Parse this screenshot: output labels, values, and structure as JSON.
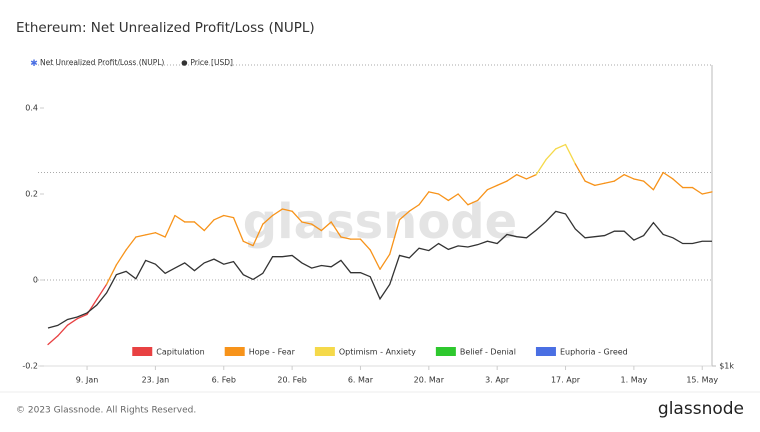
{
  "chart_data": {
    "type": "line",
    "title": "Ethereum: Net Unrealized Profit/Loss (NUPL)",
    "watermark": "glassnode",
    "x": [
      "1. Jan",
      "3. Jan",
      "5. Jan",
      "7. Jan",
      "9. Jan",
      "11. Jan",
      "13. Jan",
      "15. Jan",
      "17. Jan",
      "19. Jan",
      "21. Jan",
      "23. Jan",
      "25. Jan",
      "27. Jan",
      "29. Jan",
      "31. Jan",
      "2. Feb",
      "4. Feb",
      "6. Feb",
      "8. Feb",
      "10. Feb",
      "12. Feb",
      "14. Feb",
      "16. Feb",
      "18. Feb",
      "20. Feb",
      "22. Feb",
      "24. Feb",
      "26. Feb",
      "28. Feb",
      "2. Mar",
      "4. Mar",
      "6. Mar",
      "8. Mar",
      "10. Mar",
      "12. Mar",
      "14. Mar",
      "16. Mar",
      "18. Mar",
      "20. Mar",
      "22. Mar",
      "24. Mar",
      "26. Mar",
      "28. Mar",
      "30. Mar",
      "1. Apr",
      "3. Apr",
      "5. Apr",
      "7. Apr",
      "9. Apr",
      "11. Apr",
      "13. Apr",
      "15. Apr",
      "17. Apr",
      "19. Apr",
      "21. Apr",
      "23. Apr",
      "25. Apr",
      "27. Apr",
      "29. Apr",
      "1. May",
      "3. May",
      "5. May",
      "7. May",
      "9. May",
      "11. May",
      "13. May",
      "15. May",
      "17. May"
    ],
    "series": [
      {
        "name": "Net Unrealized Profit/Loss (NUPL)",
        "color": "#4a6fe3",
        "values": [
          -0.15,
          -0.13,
          -0.105,
          -0.09,
          -0.08,
          -0.045,
          -0.01,
          0.035,
          0.07,
          0.1,
          0.105,
          0.11,
          0.1,
          0.15,
          0.135,
          0.135,
          0.115,
          0.14,
          0.15,
          0.145,
          0.09,
          0.08,
          0.13,
          0.15,
          0.165,
          0.16,
          0.135,
          0.13,
          0.115,
          0.135,
          0.1,
          0.095,
          0.095,
          0.07,
          0.025,
          0.06,
          0.14,
          0.16,
          0.175,
          0.205,
          0.2,
          0.185,
          0.2,
          0.175,
          0.185,
          0.21,
          0.22,
          0.23,
          0.245,
          0.235,
          0.245,
          0.28,
          0.305,
          0.315,
          0.27,
          0.23,
          0.22,
          0.225,
          0.23,
          0.245,
          0.235,
          0.23,
          0.21,
          0.25,
          0.235,
          0.215,
          0.215,
          0.2,
          0.205
        ]
      },
      {
        "name": "Price [USD]",
        "color": "#333333",
        "axis": "y2",
        "values": [
          1200,
          1215,
          1250,
          1265,
          1290,
          1340,
          1420,
          1550,
          1575,
          1520,
          1660,
          1630,
          1560,
          1600,
          1640,
          1580,
          1640,
          1670,
          1630,
          1650,
          1550,
          1515,
          1560,
          1690,
          1690,
          1700,
          1640,
          1600,
          1620,
          1610,
          1660,
          1565,
          1565,
          1535,
          1380,
          1480,
          1700,
          1680,
          1760,
          1740,
          1800,
          1750,
          1780,
          1770,
          1790,
          1820,
          1800,
          1880,
          1860,
          1850,
          1920,
          2000,
          2100,
          2075,
          1930,
          1850,
          1860,
          1870,
          1910,
          1910,
          1830,
          1870,
          1990,
          1880,
          1850,
          1800,
          1800,
          1820,
          1820
        ]
      }
    ],
    "zones": [
      {
        "name": "Capitulation",
        "color": "#e84142",
        "max": 0
      },
      {
        "name": "Hope - Fear",
        "color": "#f7931a",
        "max": 0.25
      },
      {
        "name": "Optimism - Anxiety",
        "color": "#f5d94a",
        "max": 0.5
      },
      {
        "name": "Belief - Denial",
        "color": "#2ec82e",
        "max": 0.75
      },
      {
        "name": "Euphoria - Greed",
        "color": "#4a6fe3",
        "max": 1
      }
    ],
    "ylim": [
      -0.2,
      0.5
    ],
    "yticks": [
      -0.2,
      0,
      0.2,
      0.4
    ],
    "y2lim": [
      1000,
      4240
    ],
    "y2scale": "log",
    "y2ticks": [
      {
        "value": 1000,
        "label": "$1k"
      }
    ],
    "xticks": [
      "9. Jan",
      "23. Jan",
      "6. Feb",
      "20. Feb",
      "6. Mar",
      "20. Mar",
      "3. Apr",
      "17. Apr",
      "1. May",
      "15. May"
    ],
    "copyright": "© 2023 Glassnode. All Rights Reserved.",
    "brand": "glassnode"
  }
}
